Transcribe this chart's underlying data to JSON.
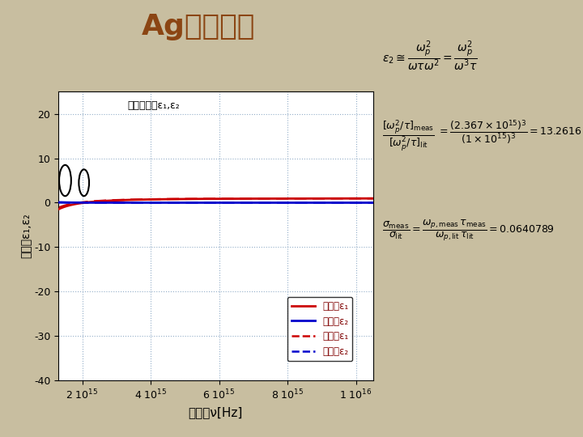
{
  "title": "Agの誘電率",
  "title_fontsize": 26,
  "title_color": "#8B4513",
  "bg_color": "#C8BEA0",
  "plot_bg_color": "#FFFFFF",
  "xlabel": "振動数ν[Hz]",
  "ylabel": "誘電率ε₁,ε₂",
  "ylim": [
    -40,
    25
  ],
  "xlim_min": 1300000000000000.0,
  "xlim_max": 1.05e+16,
  "xticks": [
    2000000000000000.0,
    4000000000000000.0,
    6000000000000000.0,
    8000000000000000.0,
    1e+16
  ],
  "yticks": [
    -40,
    -30,
    -20,
    -10,
    0,
    10,
    20
  ],
  "legend_labels": [
    "測定値ε₁",
    "測定値ε₂",
    "文献値ε₁",
    "文献値ε₂"
  ],
  "line_colors_eps1": "#CC0000",
  "line_colors_eps2": "#0000CC",
  "annotation_text1": "銀の誘電率ε₁,ε₂"
}
